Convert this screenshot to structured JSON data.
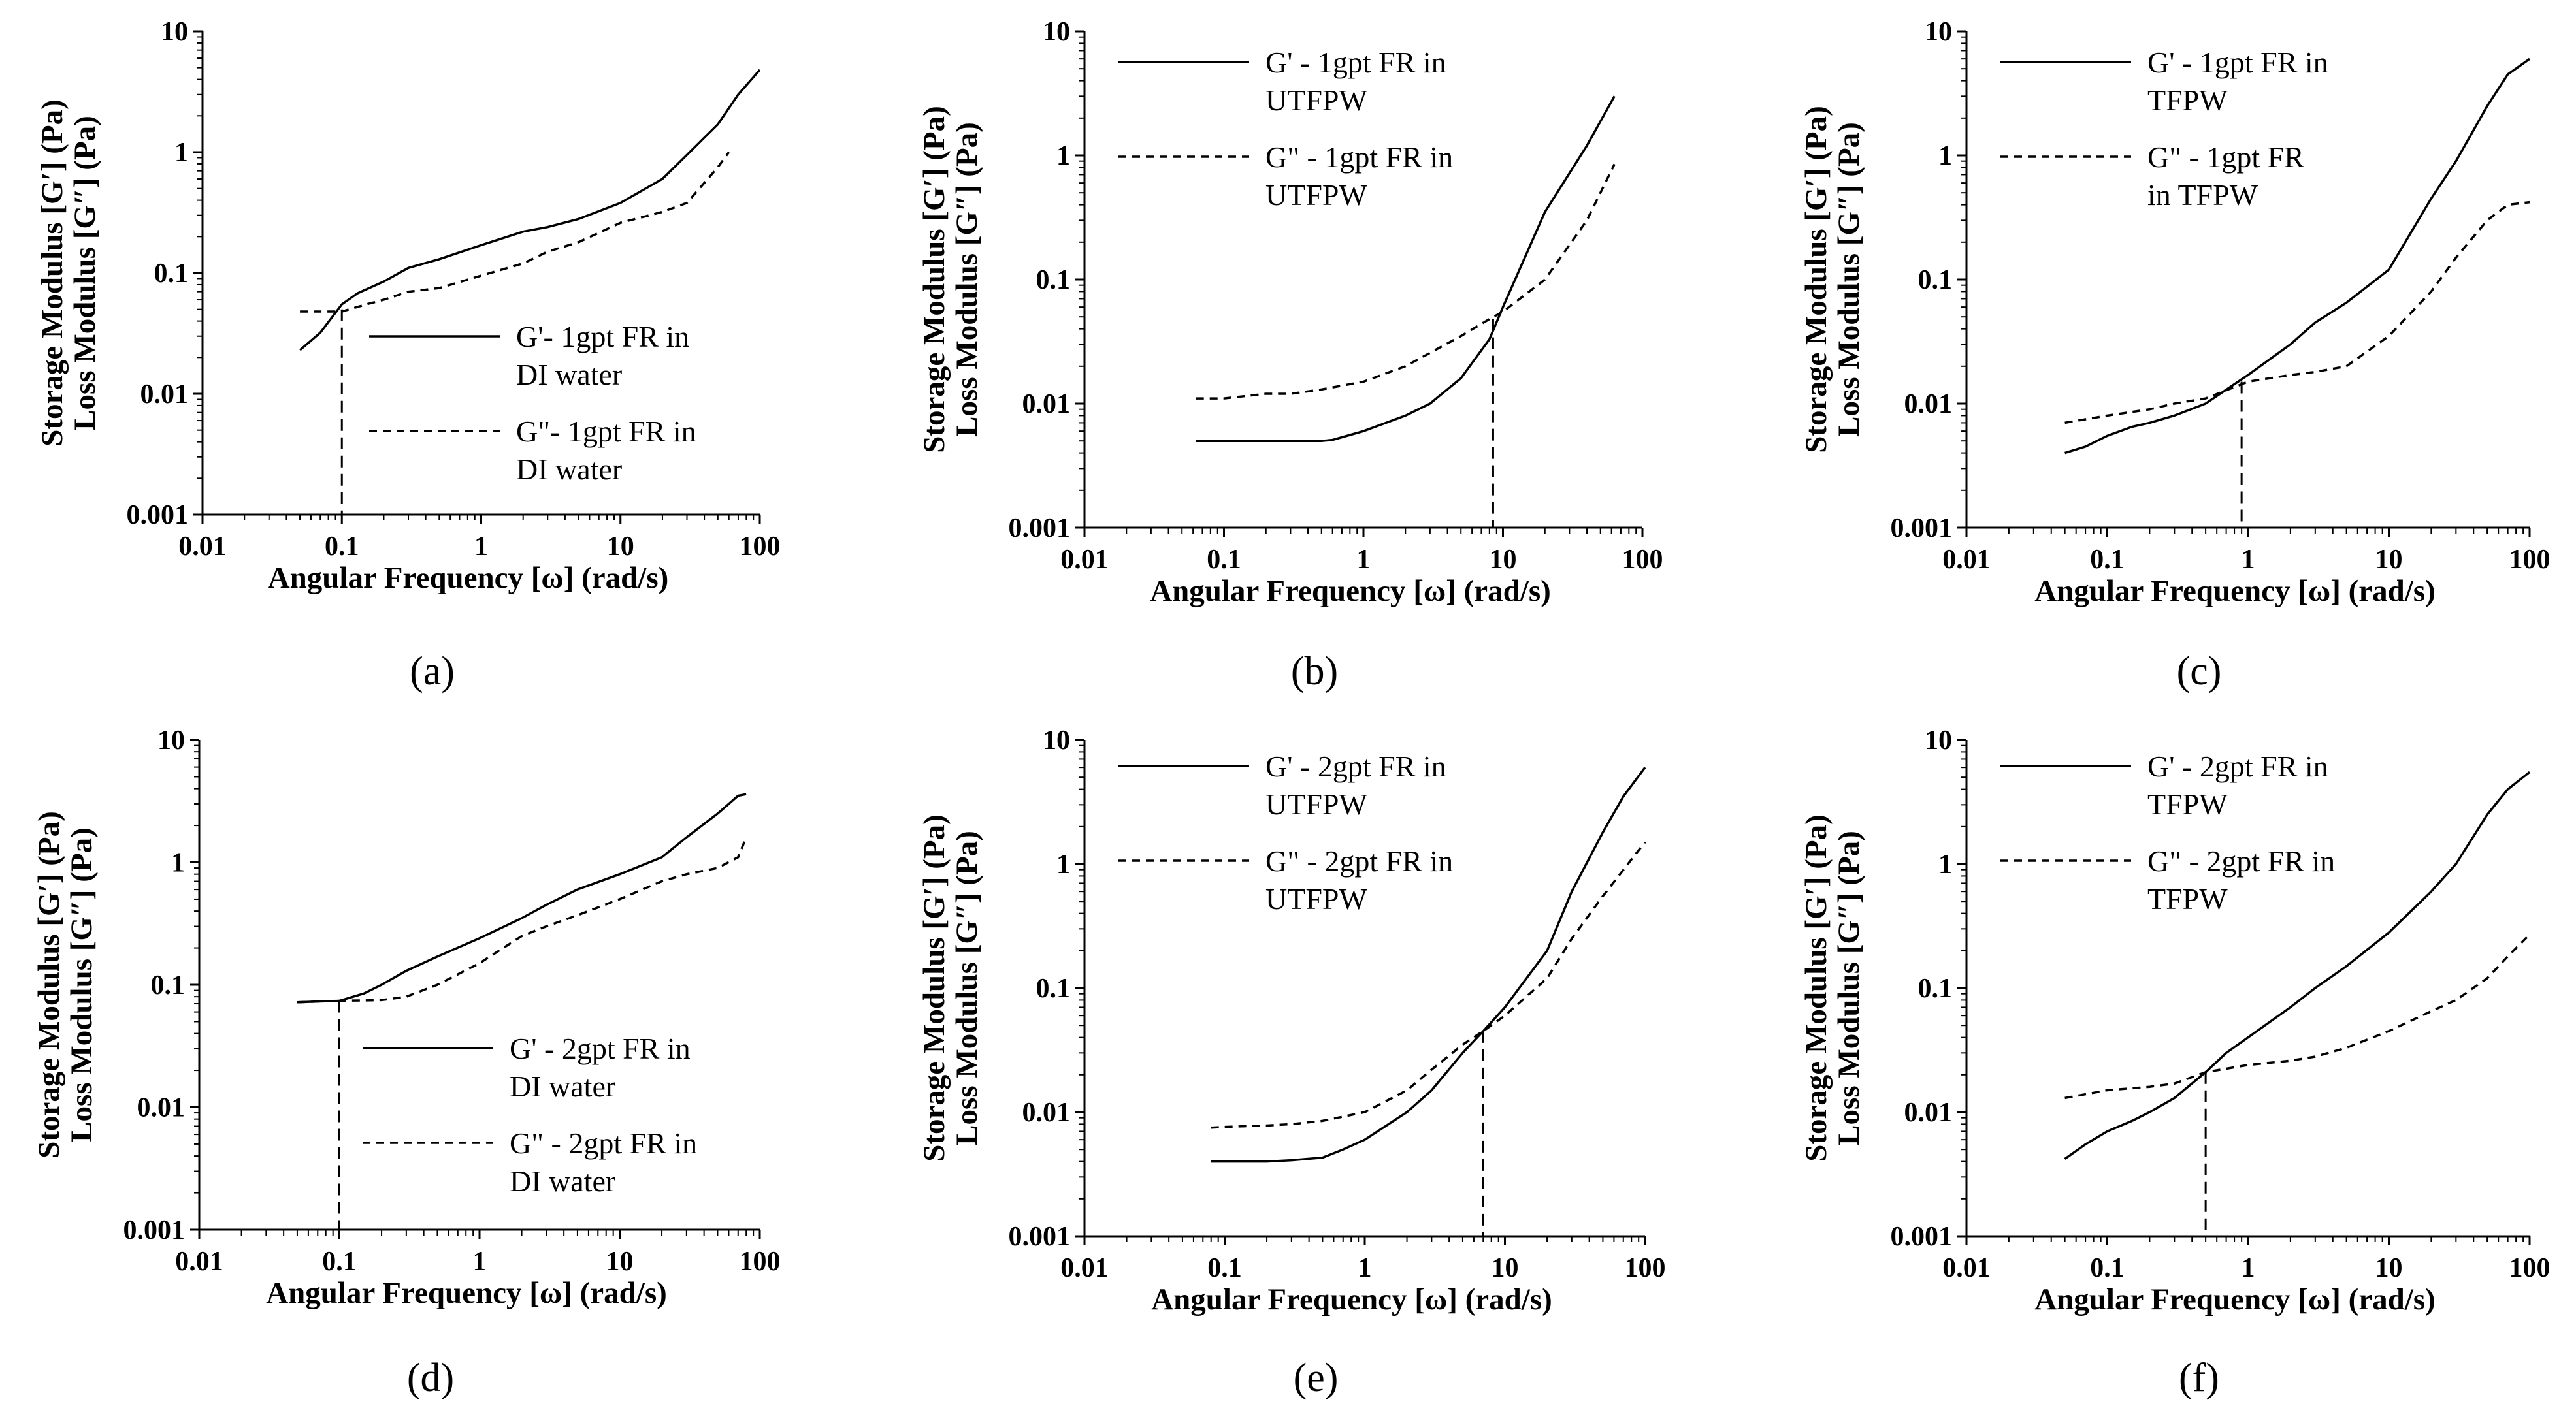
{
  "figure": {
    "chart_data": [
      {
        "panel": "(a)",
        "type": "line",
        "xscale": "log",
        "yscale": "log",
        "xlim": [
          0.01,
          100
        ],
        "ylim": [
          0.001,
          10
        ],
        "xticks": [
          "0.01",
          "0.1",
          "1",
          "10",
          "100"
        ],
        "yticks": [
          "0.001",
          "0.01",
          "0.1",
          "1",
          "10"
        ],
        "xlabel": "Angular Frequency [ω] (rad/s)",
        "ylabel_line1": "Storage Modulus [G′] (Pa)",
        "ylabel_line2": "Loss Modulus [G″] (Pa)",
        "legend_position": "bottom-right",
        "crossover": {
          "x": 0.1,
          "y": 0.05
        },
        "series": [
          {
            "name": "G'- 1gpt FR in DI water",
            "legend_lines": [
              "G'- 1gpt FR in",
              "DI water"
            ],
            "style": "solid",
            "x": [
              0.05,
              0.07,
              0.1,
              0.13,
              0.2,
              0.3,
              0.5,
              1,
              2,
              3,
              5,
              10,
              20,
              30,
              50,
              70,
              100
            ],
            "y": [
              0.023,
              0.032,
              0.055,
              0.068,
              0.085,
              0.11,
              0.13,
              0.17,
              0.22,
              0.24,
              0.28,
              0.38,
              0.6,
              0.95,
              1.7,
              3.0,
              4.8
            ]
          },
          {
            "name": "G\"- 1gpt FR in DI water",
            "legend_lines": [
              "G\"- 1gpt FR in",
              "DI water"
            ],
            "style": "dashed",
            "x": [
              0.05,
              0.1,
              0.15,
              0.2,
              0.3,
              0.5,
              1,
              2,
              3,
              5,
              10,
              20,
              30,
              50,
              60
            ],
            "y": [
              0.048,
              0.048,
              0.055,
              0.06,
              0.07,
              0.075,
              0.095,
              0.12,
              0.15,
              0.18,
              0.26,
              0.32,
              0.38,
              0.75,
              1.0
            ]
          }
        ]
      },
      {
        "panel": "(b)",
        "type": "line",
        "xscale": "log",
        "yscale": "log",
        "xlim": [
          0.01,
          100
        ],
        "ylim": [
          0.001,
          10
        ],
        "xticks": [
          "0.01",
          "0.1",
          "1",
          "10",
          "100"
        ],
        "yticks": [
          "0.001",
          "0.01",
          "0.1",
          "1",
          "10"
        ],
        "xlabel": "Angular Frequency [ω] (rad/s)",
        "ylabel_line1": "Storage Modulus [G′] (Pa)",
        "ylabel_line2": "Loss Modulus [G″] (Pa)",
        "legend_position": "top-left",
        "crossover": {
          "x": 8.5,
          "y": 0.048
        },
        "series": [
          {
            "name": "G' - 1gpt FR in UTFPW",
            "legend_lines": [
              "G' - 1gpt FR in",
              "UTFPW"
            ],
            "style": "solid",
            "x": [
              0.063,
              0.1,
              0.2,
              0.3,
              0.5,
              0.6,
              1,
              2,
              3,
              5,
              8,
              10,
              20,
              40,
              63
            ],
            "y": [
              0.005,
              0.005,
              0.005,
              0.005,
              0.005,
              0.0051,
              0.006,
              0.008,
              0.01,
              0.016,
              0.033,
              0.06,
              0.35,
              1.2,
              3.0
            ]
          },
          {
            "name": "G\" - 1gpt FR in UTFPW",
            "legend_lines": [
              "G\" - 1gpt FR in",
              "UTFPW"
            ],
            "style": "dashed",
            "x": [
              0.063,
              0.1,
              0.2,
              0.3,
              0.5,
              1,
              2,
              5,
              8,
              10,
              20,
              40,
              63
            ],
            "y": [
              0.011,
              0.011,
              0.012,
              0.012,
              0.013,
              0.015,
              0.02,
              0.035,
              0.048,
              0.055,
              0.1,
              0.3,
              0.85
            ]
          }
        ]
      },
      {
        "panel": "(c)",
        "type": "line",
        "xscale": "log",
        "yscale": "log",
        "xlim": [
          0.01,
          100
        ],
        "ylim": [
          0.001,
          10
        ],
        "xticks": [
          "0.01",
          "0.1",
          "1",
          "10",
          "100"
        ],
        "yticks": [
          "0.001",
          "0.01",
          "0.1",
          "1",
          "10"
        ],
        "xlabel": "Angular Frequency [ω] (rad/s)",
        "ylabel_line1": "Storage Modulus [G′] (Pa)",
        "ylabel_line2": "Loss Modulus [G″] (Pa)",
        "legend_position": "top-left",
        "crossover": {
          "x": 0.9,
          "y": 0.015
        },
        "series": [
          {
            "name": "G' - 1gpt FR in TFPW",
            "legend_lines": [
              "G' - 1gpt FR in",
              "TFPW"
            ],
            "style": "solid",
            "x": [
              0.05,
              0.07,
              0.1,
              0.15,
              0.2,
              0.3,
              0.5,
              1,
              2,
              3,
              5,
              10,
              20,
              30,
              50,
              70,
              100
            ],
            "y": [
              0.004,
              0.0045,
              0.0055,
              0.0065,
              0.007,
              0.008,
              0.01,
              0.017,
              0.03,
              0.045,
              0.065,
              0.12,
              0.45,
              0.9,
              2.5,
              4.5,
              6.0
            ]
          },
          {
            "name": "G\" - 1gpt FR in TFPW",
            "legend_lines": [
              "G\" - 1gpt FR",
              "in TFPW"
            ],
            "style": "dashed",
            "x": [
              0.05,
              0.1,
              0.2,
              0.3,
              0.5,
              1,
              2,
              3,
              5,
              10,
              20,
              30,
              50,
              70,
              100
            ],
            "y": [
              0.007,
              0.008,
              0.009,
              0.01,
              0.011,
              0.015,
              0.017,
              0.018,
              0.02,
              0.035,
              0.08,
              0.15,
              0.3,
              0.4,
              0.42
            ]
          }
        ]
      },
      {
        "panel": "(d)",
        "type": "line",
        "xscale": "log",
        "yscale": "log",
        "xlim": [
          0.01,
          100
        ],
        "ylim": [
          0.001,
          10
        ],
        "xticks": [
          "0.01",
          "0.1",
          "1",
          "10",
          "100"
        ],
        "yticks": [
          "0.001",
          "0.01",
          "0.1",
          "1",
          "10"
        ],
        "xlabel": "Angular Frequency [ω] (rad/s)",
        "ylabel_line1": "Storage Modulus [G′] (Pa)",
        "ylabel_line2": "Loss Modulus [G″] (Pa)",
        "legend_position": "bottom-right",
        "crossover": {
          "x": 0.1,
          "y": 0.074
        },
        "series": [
          {
            "name": "G' - 2gpt FR in DI water",
            "legend_lines": [
              "G' - 2gpt FR in",
              "DI water"
            ],
            "style": "solid",
            "x": [
              0.05,
              0.07,
              0.1,
              0.15,
              0.2,
              0.3,
              0.5,
              1,
              2,
              3,
              5,
              10,
              20,
              30,
              50,
              70,
              80
            ],
            "y": [
              0.072,
              0.073,
              0.074,
              0.085,
              0.1,
              0.13,
              0.17,
              0.24,
              0.35,
              0.45,
              0.6,
              0.8,
              1.1,
              1.6,
              2.5,
              3.5,
              3.6
            ]
          },
          {
            "name": "G\" - 2gpt FR in DI water",
            "legend_lines": [
              "G\" - 2gpt FR in",
              "DI water"
            ],
            "style": "dashed",
            "x": [
              0.05,
              0.1,
              0.2,
              0.3,
              0.5,
              1,
              2,
              3,
              5,
              10,
              20,
              30,
              50,
              70,
              80
            ],
            "y": [
              0.072,
              0.074,
              0.075,
              0.08,
              0.1,
              0.15,
              0.25,
              0.3,
              0.37,
              0.5,
              0.7,
              0.8,
              0.9,
              1.1,
              1.6
            ]
          }
        ]
      },
      {
        "panel": "(e)",
        "type": "line",
        "xscale": "log",
        "yscale": "log",
        "xlim": [
          0.01,
          100
        ],
        "ylim": [
          0.001,
          10
        ],
        "xticks": [
          "0.01",
          "0.1",
          "1",
          "10",
          "100"
        ],
        "yticks": [
          "0.001",
          "0.01",
          "0.1",
          "1",
          "10"
        ],
        "xlabel": "Angular Frequency [ω] (rad/s)",
        "ylabel_line1": "Storage Modulus [G′] (Pa)",
        "ylabel_line2": "Loss Modulus [G″] (Pa)",
        "legend_position": "top-left",
        "crossover": {
          "x": 7,
          "y": 0.045
        },
        "series": [
          {
            "name": "G' - 2gpt FR in UTFPW",
            "legend_lines": [
              "G' - 2gpt FR in",
              "UTFPW"
            ],
            "style": "solid",
            "x": [
              0.08,
              0.1,
              0.2,
              0.3,
              0.5,
              0.7,
              1,
              2,
              3,
              5,
              7,
              10,
              20,
              30,
              50,
              70,
              100
            ],
            "y": [
              0.004,
              0.004,
              0.004,
              0.0041,
              0.0043,
              0.005,
              0.006,
              0.01,
              0.015,
              0.03,
              0.045,
              0.07,
              0.2,
              0.6,
              1.8,
              3.5,
              6.0
            ]
          },
          {
            "name": "G\" - 2gpt FR in UTFPW",
            "legend_lines": [
              "G\" - 2gpt FR in",
              "UTFPW"
            ],
            "style": "dashed",
            "x": [
              0.08,
              0.1,
              0.2,
              0.3,
              0.5,
              1,
              2,
              3,
              5,
              7,
              10,
              20,
              30,
              50,
              100
            ],
            "y": [
              0.0075,
              0.0076,
              0.0078,
              0.008,
              0.0085,
              0.01,
              0.015,
              0.022,
              0.035,
              0.045,
              0.06,
              0.12,
              0.25,
              0.55,
              1.5
            ]
          }
        ]
      },
      {
        "panel": "(f)",
        "type": "line",
        "xscale": "log",
        "yscale": "log",
        "xlim": [
          0.01,
          100
        ],
        "ylim": [
          0.001,
          10
        ],
        "xticks": [
          "0.01",
          "0.1",
          "1",
          "10",
          "100"
        ],
        "yticks": [
          "0.001",
          "0.01",
          "0.1",
          "1",
          "10"
        ],
        "xlabel": "Angular Frequency [ω] (rad/s)",
        "ylabel_line1": "Storage Modulus [G′] (Pa)",
        "ylabel_line2": "Loss Modulus [G″] (Pa)",
        "legend_position": "top-left",
        "crossover": {
          "x": 0.5,
          "y": 0.021
        },
        "series": [
          {
            "name": "G' - 2gpt FR in TFPW",
            "legend_lines": [
              "G' - 2gpt FR in",
              "TFPW"
            ],
            "style": "solid",
            "x": [
              0.05,
              0.07,
              0.1,
              0.15,
              0.2,
              0.3,
              0.5,
              0.7,
              1,
              2,
              3,
              5,
              10,
              20,
              30,
              50,
              70,
              100
            ],
            "y": [
              0.0042,
              0.0055,
              0.007,
              0.0085,
              0.01,
              0.013,
              0.021,
              0.03,
              0.04,
              0.07,
              0.1,
              0.15,
              0.28,
              0.6,
              1.0,
              2.5,
              4.0,
              5.5
            ]
          },
          {
            "name": "G\" - 2gpt FR in TFPW",
            "legend_lines": [
              "G\" - 2gpt FR in",
              "TFPW"
            ],
            "style": "dashed",
            "x": [
              0.05,
              0.1,
              0.2,
              0.3,
              0.5,
              1,
              2,
              3,
              5,
              10,
              20,
              30,
              50,
              70,
              100
            ],
            "y": [
              0.013,
              0.015,
              0.016,
              0.017,
              0.021,
              0.024,
              0.026,
              0.028,
              0.033,
              0.045,
              0.065,
              0.08,
              0.12,
              0.18,
              0.27
            ]
          }
        ]
      }
    ]
  }
}
